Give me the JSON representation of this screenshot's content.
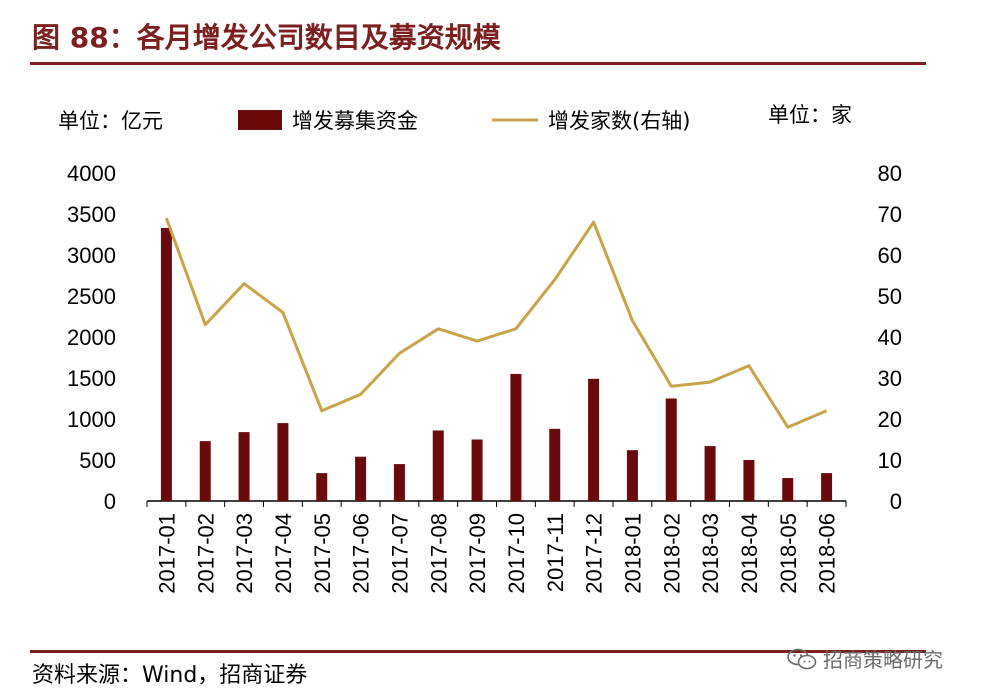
{
  "header": {
    "title": "图 88：各月增发公司数目及募资规模"
  },
  "footer": {
    "source": "资料来源：Wind，招商证券",
    "watermark": "招商策略研究"
  },
  "colors": {
    "bar": "#6b0a0a",
    "line": "#c9a349",
    "title": "#7b1f1f"
  },
  "chart_data": {
    "type": "bar",
    "unit_left": "单位：亿元",
    "unit_right": "单位：家",
    "categories": [
      "2017-01",
      "2017-02",
      "2017-03",
      "2017-04",
      "2017-05",
      "2017-06",
      "2017-07",
      "2017-08",
      "2017-09",
      "2017-10",
      "2017-11",
      "2017-12",
      "2018-01",
      "2018-02",
      "2018-03",
      "2018-04",
      "2018-05",
      "2018-06"
    ],
    "series": [
      {
        "name": "增发募集资金",
        "type": "bar",
        "axis": "left",
        "values": [
          3330,
          730,
          840,
          950,
          340,
          540,
          450,
          860,
          750,
          1550,
          880,
          1490,
          620,
          1250,
          670,
          500,
          280,
          340
        ]
      },
      {
        "name": "增发家数(右轴)",
        "type": "line",
        "axis": "right",
        "values": [
          69,
          43,
          53,
          46,
          22,
          26,
          36,
          42,
          39,
          42,
          54,
          68,
          44,
          28,
          29,
          33,
          18,
          22
        ]
      }
    ],
    "ylim_left": [
      0,
      4000
    ],
    "yticks_left": [
      "0",
      "500",
      "1000",
      "1500",
      "2000",
      "2500",
      "3000",
      "3500",
      "4000"
    ],
    "ylim_right": [
      0,
      80
    ],
    "yticks_right": [
      "0",
      "10",
      "20",
      "30",
      "40",
      "50",
      "60",
      "70",
      "80"
    ],
    "grid": false,
    "legend": "top"
  }
}
